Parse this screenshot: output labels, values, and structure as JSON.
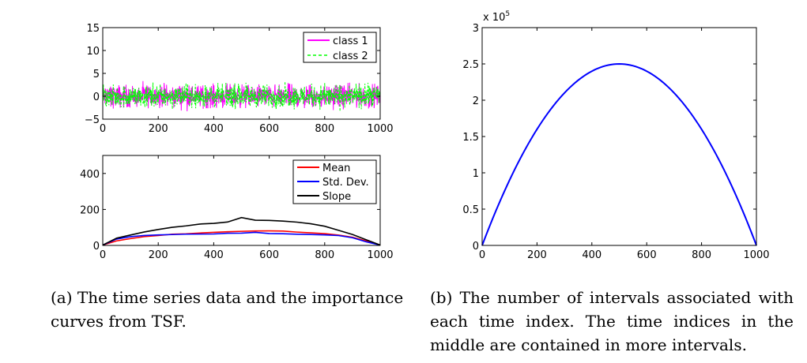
{
  "chart_data": [
    {
      "type": "line",
      "panel": "a-top",
      "xlim": [
        0,
        1000
      ],
      "ylim": [
        -5,
        15
      ],
      "xticks": [
        0,
        200,
        400,
        600,
        800,
        1000
      ],
      "yticks": [
        -5,
        0,
        5,
        10,
        15
      ],
      "legend_position": "top-right",
      "series": [
        {
          "name": "class 1",
          "color": "#ff00ff",
          "style": "solid",
          "description": "noise band roughly between -4 and 4"
        },
        {
          "name": "class 2",
          "color": "#00ff00",
          "style": "dashed",
          "description": "noise band roughly between -4 and 4"
        }
      ]
    },
    {
      "type": "line",
      "panel": "a-bottom",
      "xlim": [
        0,
        1000
      ],
      "ylim": [
        0,
        500
      ],
      "xticks": [
        0,
        200,
        400,
        600,
        800,
        1000
      ],
      "yticks": [
        0,
        200,
        400
      ],
      "legend_position": "top-right",
      "x": [
        0,
        50,
        100,
        150,
        200,
        250,
        300,
        350,
        400,
        450,
        500,
        550,
        600,
        650,
        700,
        750,
        800,
        850,
        900,
        950,
        1000
      ],
      "series": [
        {
          "name": "Mean",
          "color": "#ff0000",
          "values": [
            2,
            25,
            38,
            48,
            55,
            62,
            66,
            70,
            72,
            75,
            77,
            80,
            82,
            80,
            75,
            70,
            65,
            58,
            45,
            25,
            2
          ]
        },
        {
          "name": "Std. Dev.",
          "color": "#0000ff",
          "values": [
            2,
            35,
            48,
            55,
            58,
            60,
            62,
            64,
            65,
            67,
            68,
            70,
            68,
            66,
            62,
            60,
            58,
            55,
            42,
            22,
            2
          ]
        },
        {
          "name": "Slope",
          "color": "#000000",
          "values": [
            2,
            40,
            58,
            75,
            88,
            100,
            110,
            118,
            122,
            130,
            155,
            140,
            138,
            135,
            130,
            118,
            105,
            85,
            60,
            30,
            2
          ]
        }
      ]
    },
    {
      "type": "line",
      "panel": "b",
      "xlim": [
        0,
        1000
      ],
      "ylim": [
        0,
        3
      ],
      "y_multiplier_label": "x 10^5",
      "xticks": [
        0,
        200,
        400,
        600,
        800,
        1000
      ],
      "yticks": [
        0,
        0.5,
        1,
        1.5,
        2,
        2.5,
        3
      ],
      "formula": "y = x * (1000 - x) / 100000",
      "x": [
        0,
        100,
        200,
        300,
        400,
        500,
        600,
        700,
        800,
        900,
        1000
      ],
      "series": [
        {
          "color": "#0000ff",
          "values": [
            0,
            0.9,
            1.6,
            2.1,
            2.4,
            2.5,
            2.4,
            2.1,
            1.6,
            0.9,
            0
          ]
        }
      ]
    }
  ],
  "tick_labels": {
    "a_top_x": [
      "0",
      "200",
      "400",
      "600",
      "800",
      "1000"
    ],
    "a_top_y": [
      "−5",
      "0",
      "5",
      "10",
      "15"
    ],
    "a_bottom_x": [
      "0",
      "200",
      "400",
      "600",
      "800",
      "1000"
    ],
    "a_bottom_y": [
      "0",
      "200",
      "400"
    ],
    "b_x": [
      "0",
      "200",
      "400",
      "600",
      "800",
      "1000"
    ],
    "b_y": [
      "0",
      "0.5",
      "1",
      "1.5",
      "2",
      "2.5",
      "3"
    ]
  },
  "multiplier": {
    "base": "x 10",
    "exp": "5"
  },
  "captions": {
    "a": "(a) The time series data and the importance curves from TSF.",
    "b": "(b) The number of intervals associated with each time index. The time indices in the middle are contained in more intervals."
  }
}
